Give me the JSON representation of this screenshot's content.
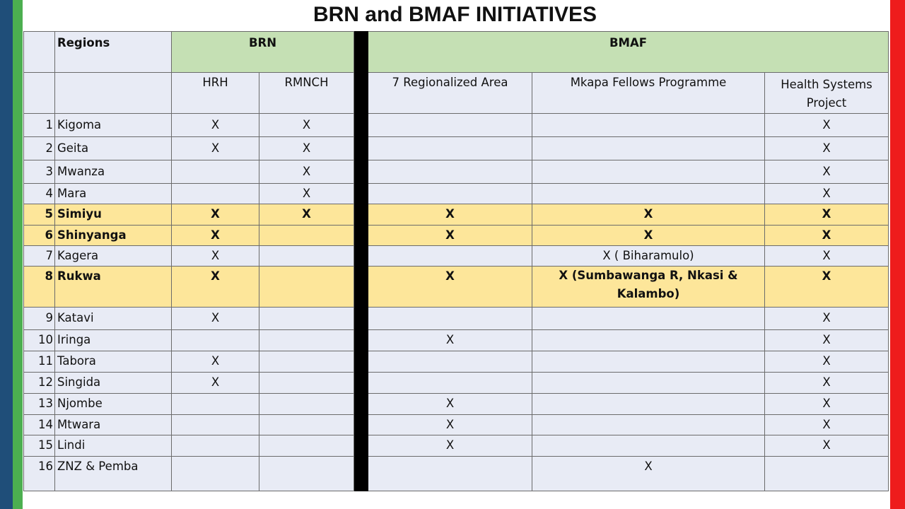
{
  "slide": {
    "title": "BRN and BMAF INITIATIVES"
  },
  "table": {
    "header1": {
      "regions": "Regions",
      "brn": "BRN",
      "bmaf": "BMAF"
    },
    "header2": {
      "hrh": "HRH",
      "rmnch": "RMNCH",
      "regionalized": "7 Regionalized Area",
      "mkapa": "Mkapa Fellows Programme",
      "hsp": "Health Systems Project"
    },
    "rows": [
      {
        "num": "1",
        "region": "Kigoma",
        "hrh": "X",
        "rmnch": "X",
        "area": "",
        "mkapa": "",
        "hsp": "X"
      },
      {
        "num": "2",
        "region": "Geita",
        "hrh": "X",
        "rmnch": "X",
        "area": "",
        "mkapa": "",
        "hsp": "X"
      },
      {
        "num": "3",
        "region": "Mwanza",
        "hrh": "",
        "rmnch": "X",
        "area": "",
        "mkapa": "",
        "hsp": "X"
      },
      {
        "num": "4",
        "region": "Mara",
        "hrh": "",
        "rmnch": "X",
        "area": "",
        "mkapa": "",
        "hsp": "X"
      },
      {
        "num": "5",
        "region": "Simiyu",
        "hrh": "X",
        "rmnch": "X",
        "area": "X",
        "mkapa": "X",
        "hsp": "X"
      },
      {
        "num": "6",
        "region": "Shinyanga",
        "hrh": "X",
        "rmnch": "",
        "area": "X",
        "mkapa": "X",
        "hsp": "X"
      },
      {
        "num": "7",
        "region": "Kagera",
        "hrh": "X",
        "rmnch": "",
        "area": "",
        "mkapa": "X ( Biharamulo)",
        "hsp": "X"
      },
      {
        "num": "8",
        "region": "Rukwa",
        "hrh": "X",
        "rmnch": "",
        "area": "X",
        "mkapa": "X (Sumbawanga R, Nkasi  & Kalambo)",
        "hsp": "X"
      },
      {
        "num": "9",
        "region": "Katavi",
        "hrh": "X",
        "rmnch": "",
        "area": "",
        "mkapa": "",
        "hsp": "X"
      },
      {
        "num": "10",
        "region": "Iringa",
        "hrh": "",
        "rmnch": "",
        "area": "X",
        "mkapa": "",
        "hsp": "X"
      },
      {
        "num": "11",
        "region": "Tabora",
        "hrh": "X",
        "rmnch": "",
        "area": "",
        "mkapa": "",
        "hsp": "X"
      },
      {
        "num": "12",
        "region": "Singida",
        "hrh": "X",
        "rmnch": "",
        "area": "",
        "mkapa": "",
        "hsp": "X"
      },
      {
        "num": "13",
        "region": "Njombe",
        "hrh": "",
        "rmnch": "",
        "area": "X",
        "mkapa": "",
        "hsp": "X"
      },
      {
        "num": "14",
        "region": "Mtwara",
        "hrh": "",
        "rmnch": "",
        "area": "X",
        "mkapa": "",
        "hsp": "X"
      },
      {
        "num": "15",
        "region": "Lindi",
        "hrh": "",
        "rmnch": "",
        "area": "X",
        "mkapa": "",
        "hsp": "X"
      },
      {
        "num": "16",
        "region": "ZNZ & Pemba",
        "hrh": "",
        "rmnch": "",
        "area": "",
        "mkapa": "X",
        "hsp": ""
      }
    ]
  }
}
